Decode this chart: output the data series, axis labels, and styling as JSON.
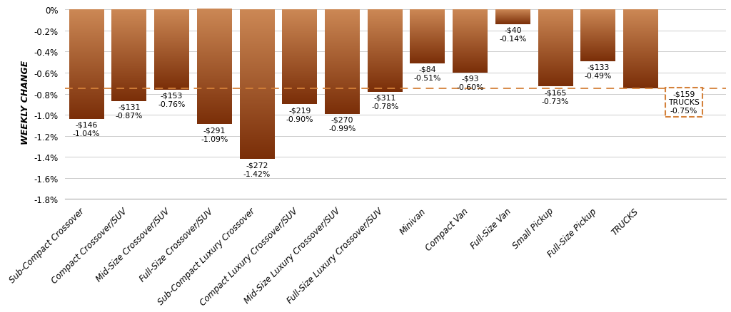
{
  "categories": [
    "Sub-Compact Crossover",
    "Compact Crossover/SUV",
    "Mid-Size Crossover/SUV",
    "Full-Size Crossover/SUV",
    "Sub-Compact Luxury Crossover",
    "Compact Luxury Crossover/SUV",
    "Mid-Size Luxury Crossover/SUV",
    "Full-Size Luxury Crossover/SUV",
    "Minivan",
    "Compact Van",
    "Full-Size Van",
    "Small Pickup",
    "Full-Size Pickup",
    "TRUCKS"
  ],
  "pct_values": [
    -1.04,
    -0.87,
    -0.76,
    -1.09,
    -1.42,
    -0.9,
    -0.99,
    -0.78,
    -0.51,
    -0.6,
    -0.14,
    -0.73,
    -0.49,
    -0.75
  ],
  "dollar_values": [
    146,
    131,
    153,
    291,
    272,
    219,
    270,
    311,
    84,
    93,
    40,
    165,
    133,
    159
  ],
  "reference_line_pct": -0.75,
  "bar_color_top": "#cc8855",
  "bar_color_bottom": "#7a2e08",
  "background_color": "#ffffff",
  "ylabel": "WEEKLY CHANGE",
  "ylim_min": -1.8,
  "ylim_max": 0.05,
  "yticks": [
    0.0,
    -0.2,
    -0.4,
    -0.6,
    -0.8,
    -1.0,
    -1.2,
    -1.4,
    -1.6,
    -1.8
  ],
  "ytick_labels": [
    "0%",
    "-0.2%",
    "-0.4%",
    "-0.6%",
    "-0.8%",
    "-1.0%",
    "-1.2%",
    "-1.4%",
    "-1.6%",
    "-1.8%"
  ],
  "refline_color": "#d4813a",
  "trucks_box_color": "#d4813a",
  "annotation_fontsize": 7.8,
  "axis_fontsize": 8.5,
  "ylabel_fontsize": 9,
  "bar_width": 0.82
}
